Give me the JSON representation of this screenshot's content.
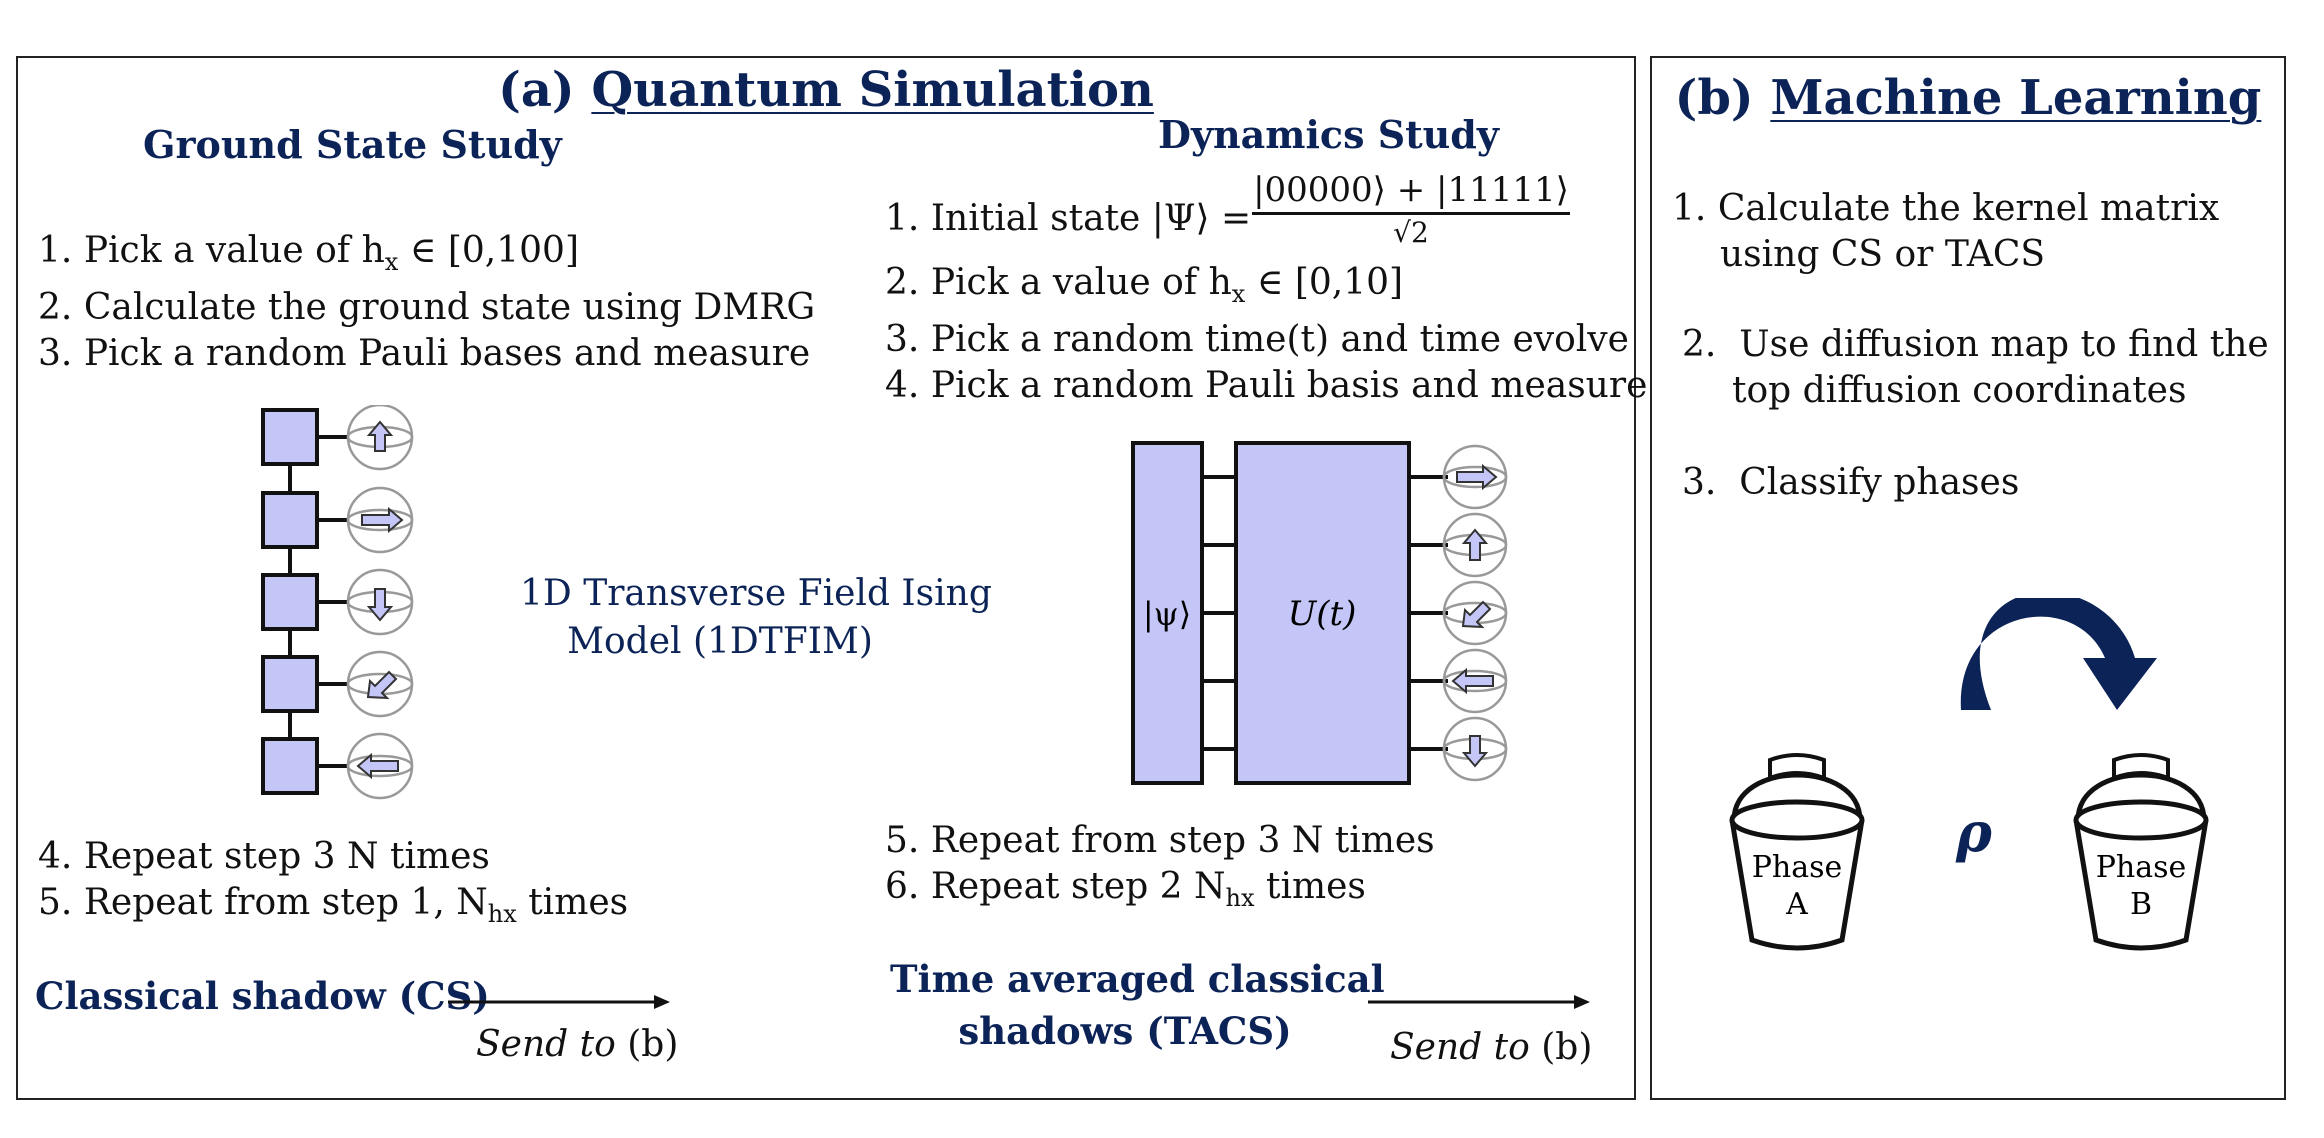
{
  "panel_a": {
    "title_prefix": "(a)",
    "title": "Quantum Simulation",
    "ground": {
      "heading": "Ground State Study",
      "steps": [
        {
          "n": "1.",
          "pre": "Pick a value of h",
          "sub": "x",
          "post": " ∈ [0,100]"
        },
        {
          "n": "2.",
          "text": "Calculate the ground state using DMRG"
        },
        {
          "n": "3.",
          "text": "Pick a random Pauli bases and measure"
        }
      ],
      "steps_after": [
        {
          "n": "4.",
          "text": "Repeat step 3 N times"
        },
        {
          "n": "5.",
          "pre": "Repeat from step 1, N",
          "sub": "hx",
          "post": " times"
        }
      ],
      "output_label": "Classical shadow (CS)",
      "send_em": "Send to",
      "send_rest": " (b)"
    },
    "model": {
      "line1": "1D Transverse Field Ising",
      "line2": "Model (1DTFIM)"
    },
    "dynamics": {
      "heading": "Dynamics Study",
      "step1": {
        "n": "1.",
        "pre": "Initial state |Ψ⟩ =",
        "num": "|00000⟩ + |11111⟩",
        "den": "√2"
      },
      "steps": [
        {
          "n": "2.",
          "pre": "Pick a value of h",
          "sub": "x",
          "post": " ∈ [0,10]"
        },
        {
          "n": "3.",
          "text": "Pick a random time(t) and time evolve"
        },
        {
          "n": "4.",
          "text": "Pick a random Pauli basis and measure"
        }
      ],
      "psi_label": "|ψ⟩",
      "u_label": "U(t)",
      "steps_after": [
        {
          "n": "5.",
          "text": "Repeat from step 3 N times"
        },
        {
          "n": "6.",
          "pre": "Repeat step 2 N",
          "sub": "hx",
          "post": " times"
        }
      ],
      "output_label_1": "Time averaged classical",
      "output_label_2": "shadows (TACS)",
      "send_em": "Send to",
      "send_rest": " (b)"
    }
  },
  "panel_b": {
    "title_prefix": "(b)",
    "title": "Machine Learning",
    "steps": [
      {
        "n": "1.",
        "line1": "Calculate the kernel matrix",
        "line2": "using CS or TACS"
      },
      {
        "n": "2.",
        "line1": "Use diffusion map to find the",
        "line2": "top diffusion coordinates"
      },
      {
        "n": "3.",
        "line1": "Classify phases"
      }
    ],
    "rho": "ρ",
    "bucket_a": {
      "line1": "Phase",
      "line2": "A"
    },
    "bucket_b": {
      "line1": "Phase",
      "line2": "B"
    }
  },
  "colors": {
    "navy": "#0c2357",
    "box_fill": "#c4c6f7",
    "outline": "#111111",
    "sphere": "#999999"
  },
  "icons": {
    "chain_arrows": [
      "up-arrow-icon",
      "right-arrow-icon",
      "down-arrow-icon",
      "down-left-arrow-icon",
      "left-arrow-icon"
    ],
    "circuit_arrows": [
      "right-arrow-icon",
      "up-arrow-icon",
      "down-left-arrow-icon",
      "left-arrow-icon",
      "down-arrow-icon"
    ]
  }
}
